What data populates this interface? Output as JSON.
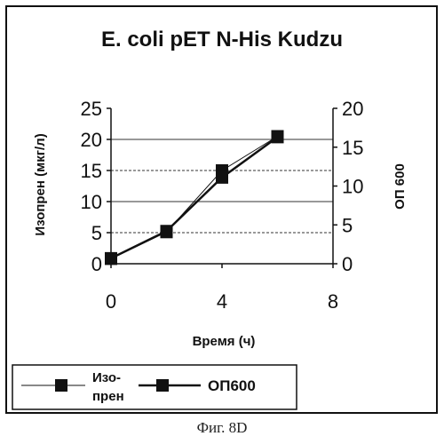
{
  "figure_caption": "Фиг. 8D",
  "chart_data": {
    "type": "line",
    "title": "E. coli pET N-His Kudzu",
    "xlabel": "Время (ч)",
    "ylabel": "Изопрен (мкг/л)",
    "y2label": "ОП 600",
    "xlim": [
      0,
      8
    ],
    "ylim": [
      0,
      25
    ],
    "y2lim": [
      0,
      20
    ],
    "x_ticks": [
      0,
      4,
      8
    ],
    "y_ticks": [
      0,
      5,
      10,
      15,
      20,
      25
    ],
    "y2_ticks": [
      0,
      5,
      10,
      15,
      20
    ],
    "grid": "horizontal dashed",
    "legend_position": "bottom",
    "series": [
      {
        "name": "Изо-\nпрен",
        "axis": "left",
        "x": [
          0,
          2,
          4,
          6
        ],
        "values": [
          0.8,
          5.1,
          15,
          20.5
        ],
        "line": "thin",
        "marker": "square"
      },
      {
        "name": "ОП600",
        "axis": "right",
        "x": [
          0,
          2,
          4,
          6
        ],
        "values": [
          0.7,
          4.2,
          11.1,
          16.3
        ],
        "line": "thick",
        "marker": "square"
      }
    ]
  },
  "colors": {
    "ink": "#111111",
    "grid": "#333333",
    "background": "#ffffff"
  }
}
